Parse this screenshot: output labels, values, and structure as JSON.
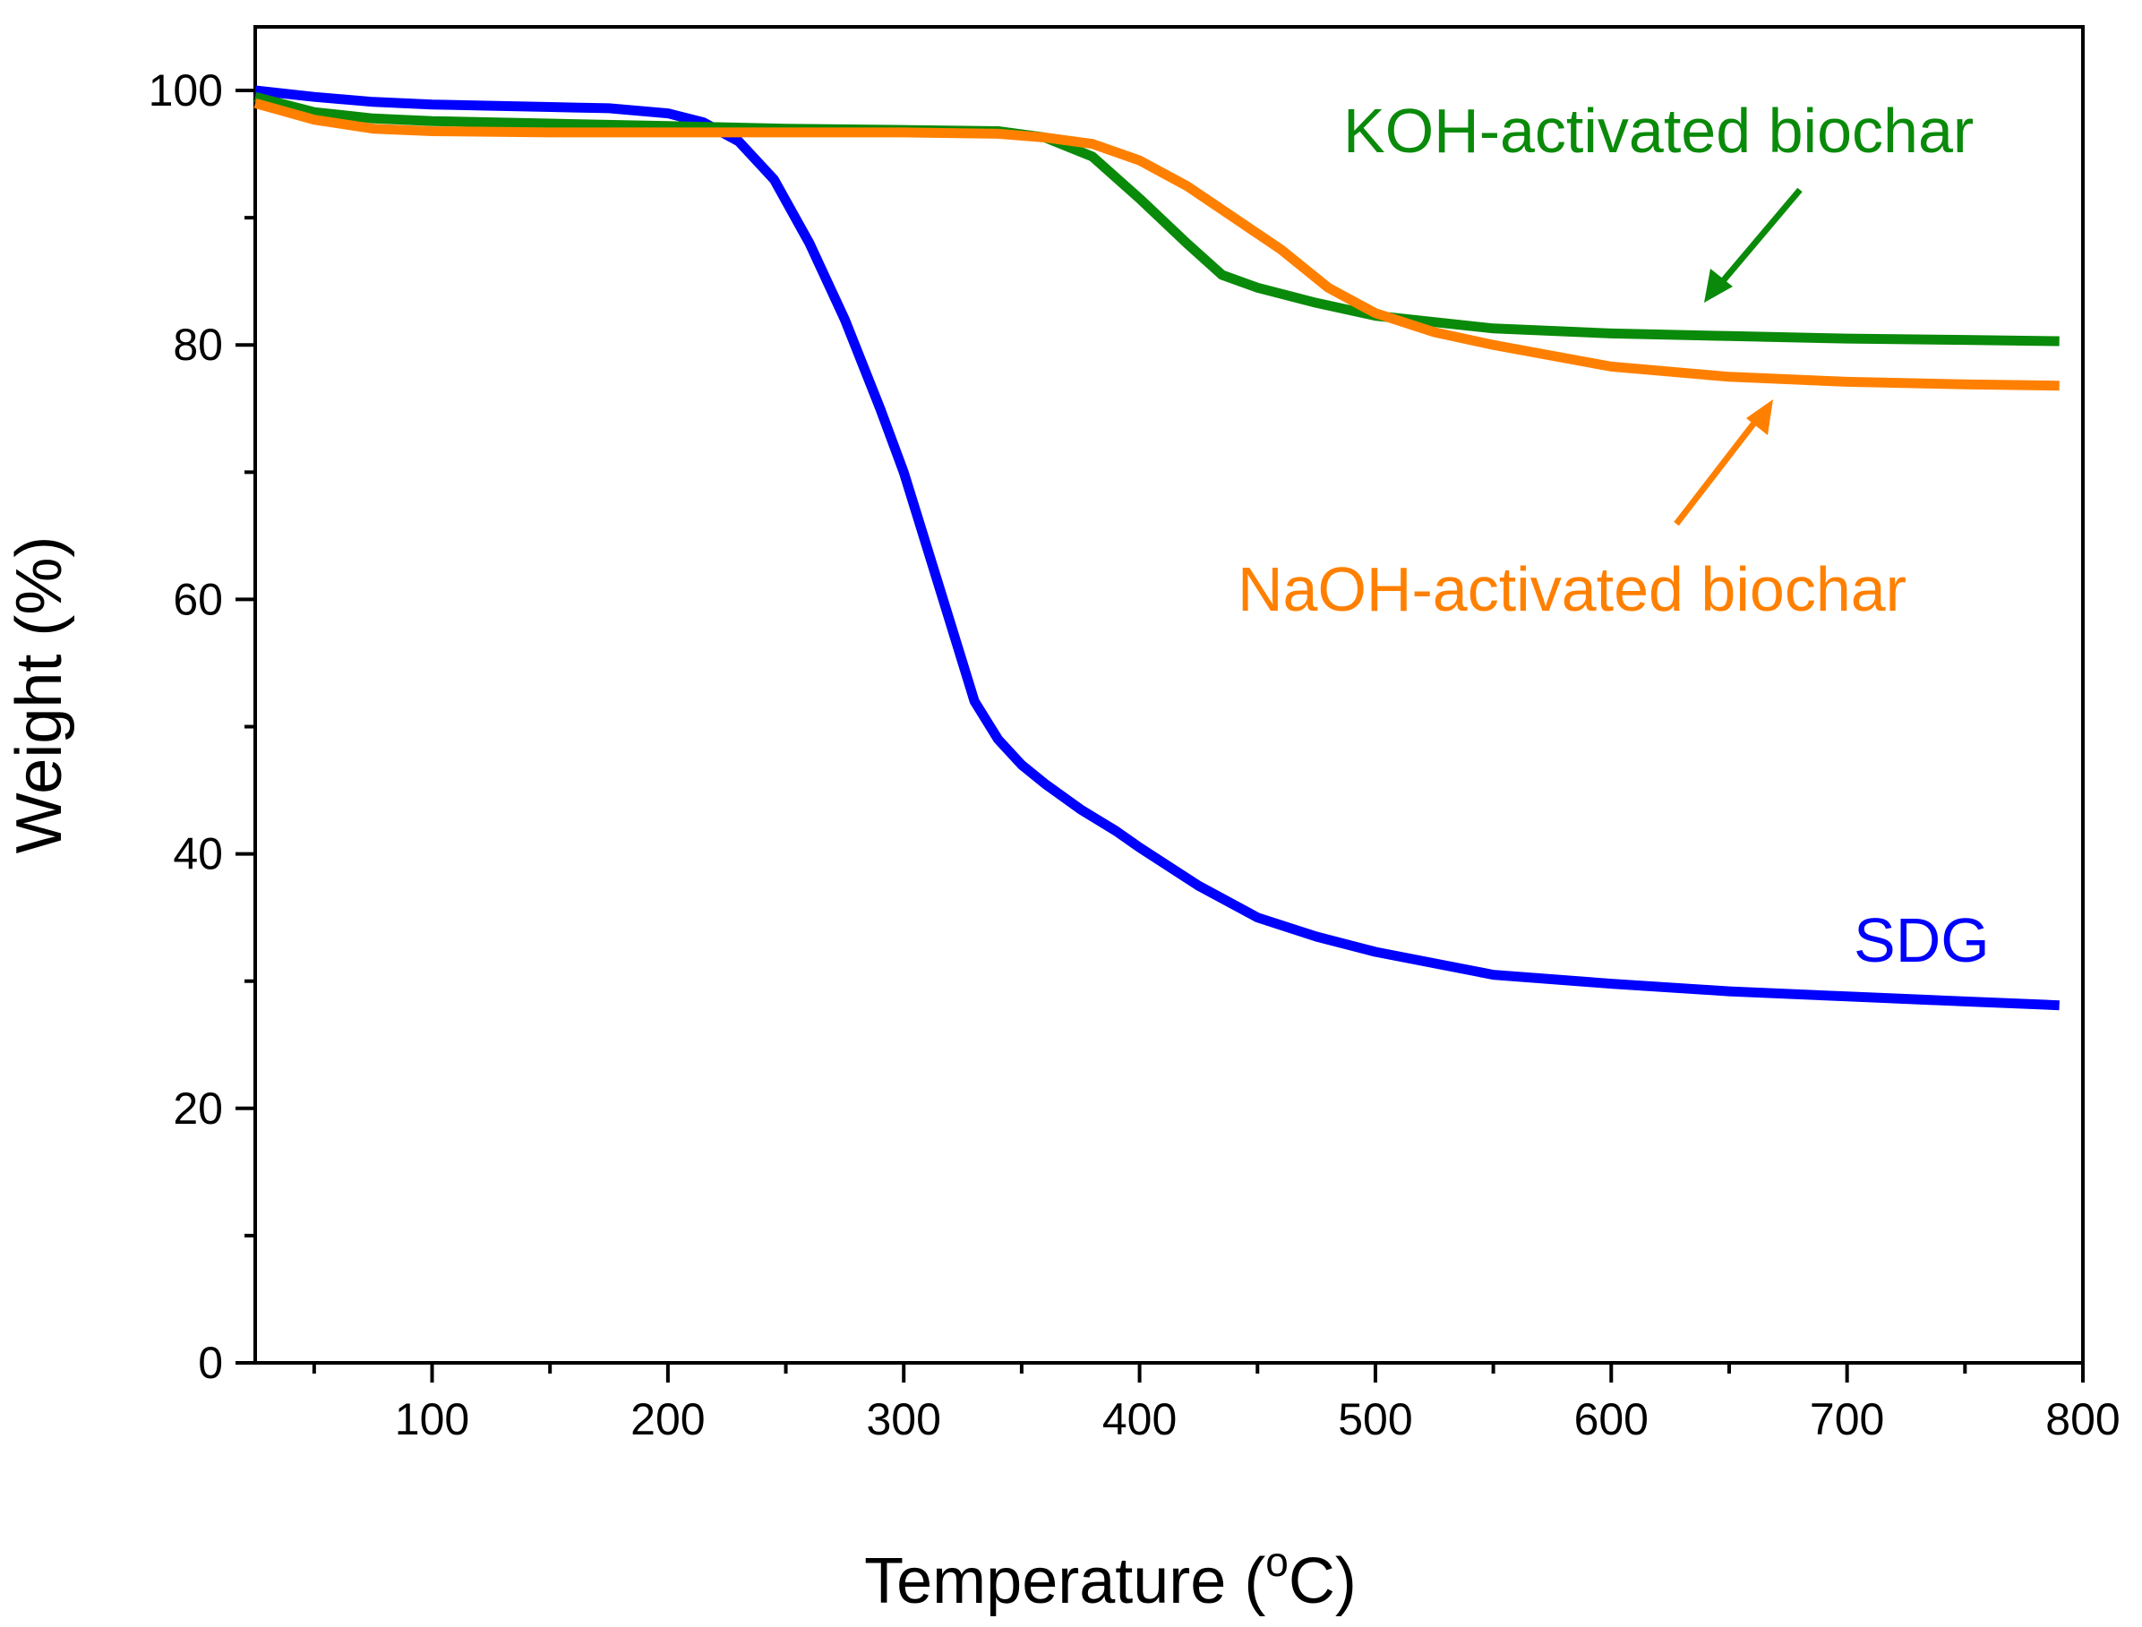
{
  "chart_data": {
    "type": "line",
    "title": "",
    "xlabel": "Temperature (",
    "xlabel_sup": "o",
    "xlabel_unit": "C)",
    "ylabel": "Weight (%)",
    "xlim": [
      25,
      800
    ],
    "ylim": [
      0,
      105
    ],
    "xticks": [
      100,
      200,
      300,
      400,
      500,
      600,
      700,
      800
    ],
    "yticks": [
      0,
      20,
      40,
      60,
      80,
      100
    ],
    "grid": false,
    "series": [
      {
        "name": "SDG",
        "color": "#0000ff",
        "x": [
          25,
          50,
          75,
          100,
          125,
          150,
          175,
          200,
          215,
          230,
          245,
          260,
          275,
          290,
          300,
          310,
          320,
          330,
          340,
          350,
          360,
          375,
          390,
          400,
          425,
          450,
          475,
          500,
          550,
          600,
          650,
          700,
          750,
          790
        ],
        "y": [
          100,
          99.5,
          99.1,
          98.9,
          98.8,
          98.7,
          98.6,
          98.2,
          97.5,
          96.0,
          93.0,
          88.0,
          82.0,
          75.0,
          70.0,
          64.0,
          58.0,
          52.0,
          49.0,
          47.0,
          45.5,
          43.5,
          41.8,
          40.5,
          37.5,
          35.0,
          33.5,
          32.3,
          30.5,
          29.8,
          29.2,
          28.8,
          28.4,
          28.1
        ]
      },
      {
        "name": "KOH-activated biochar",
        "color": "#0a8a0a",
        "x": [
          25,
          50,
          75,
          100,
          150,
          200,
          250,
          300,
          340,
          360,
          380,
          400,
          420,
          435,
          450,
          475,
          500,
          550,
          600,
          650,
          700,
          750,
          790
        ],
        "y": [
          99.5,
          98.3,
          97.8,
          97.6,
          97.4,
          97.2,
          97.0,
          96.9,
          96.8,
          96.3,
          94.8,
          91.5,
          88.0,
          85.5,
          84.5,
          83.3,
          82.3,
          81.3,
          80.9,
          80.7,
          80.5,
          80.4,
          80.3
        ]
      },
      {
        "name": "NaOH-activated biochar",
        "color": "#ff8000",
        "x": [
          25,
          50,
          75,
          100,
          150,
          200,
          250,
          300,
          340,
          360,
          380,
          400,
          420,
          440,
          460,
          480,
          500,
          525,
          550,
          600,
          650,
          700,
          750,
          790
        ],
        "y": [
          99.0,
          97.7,
          97.0,
          96.8,
          96.7,
          96.7,
          96.7,
          96.7,
          96.6,
          96.3,
          95.8,
          94.5,
          92.5,
          90.0,
          87.5,
          84.5,
          82.5,
          81.0,
          80.0,
          78.3,
          77.5,
          77.1,
          76.9,
          76.8
        ]
      }
    ],
    "annotations": [
      {
        "text": "KOH-activated biochar",
        "color": "#0a8a0a"
      },
      {
        "text": "NaOH-activated biochar",
        "color": "#ff8000"
      },
      {
        "text": "SDG",
        "color": "#0000ff"
      }
    ]
  }
}
